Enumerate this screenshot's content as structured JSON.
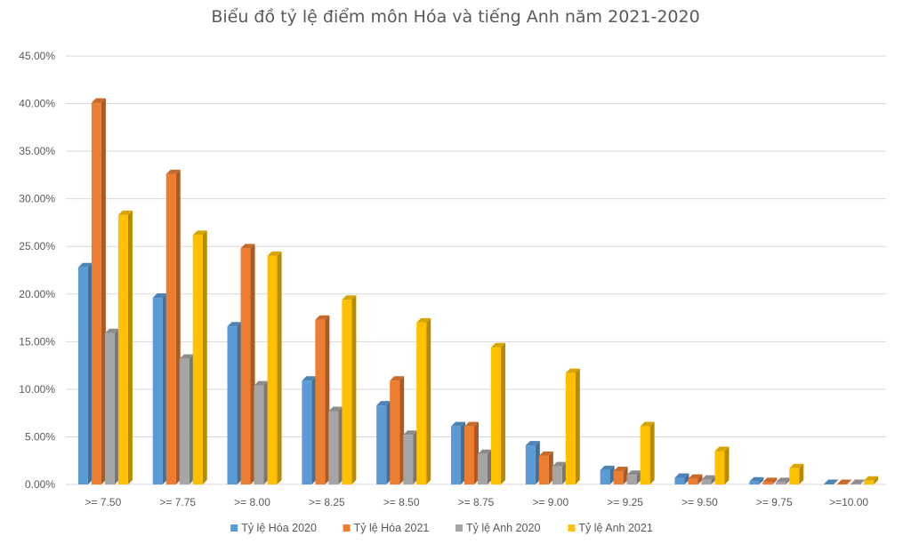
{
  "chart_data": {
    "type": "bar",
    "title": "Biểu đồ tỷ lệ điểm môn Hóa và tiếng Anh năm 2021-2020",
    "xlabel": "",
    "ylabel": "",
    "categories": [
      ">= 7.50",
      ">= 7.75",
      ">= 8.00",
      ">= 8.25",
      ">= 8.50",
      ">= 8.75",
      ">= 9.00",
      ">= 9.25",
      ">= 9.50",
      ">= 9.75",
      ">=10.00"
    ],
    "ylim": [
      0,
      45
    ],
    "yticks": [
      0,
      5,
      10,
      15,
      20,
      25,
      30,
      35,
      40,
      45
    ],
    "ytick_labels": [
      "0.00%",
      "5.00%",
      "10.00%",
      "15.00%",
      "20.00%",
      "25.00%",
      "30.00%",
      "35.00%",
      "40.00%",
      "45.00%"
    ],
    "grid": true,
    "legend_position": "bottom",
    "series": [
      {
        "name": "Tỷ lệ Hóa 2020",
        "color": "#5B9BD5",
        "values": [
          22.8,
          19.6,
          16.6,
          10.9,
          8.3,
          6.1,
          4.1,
          1.5,
          0.7,
          0.3,
          0.05
        ]
      },
      {
        "name": "Tỷ lệ Hóa 2021",
        "color": "#ED7D31",
        "values": [
          40.1,
          32.6,
          24.8,
          17.3,
          10.9,
          6.1,
          3.0,
          1.4,
          0.6,
          0.25,
          0.05
        ]
      },
      {
        "name": "Tỷ lệ Anh 2020",
        "color": "#A5A5A5",
        "values": [
          15.9,
          13.2,
          10.4,
          7.7,
          5.2,
          3.2,
          1.9,
          1.0,
          0.5,
          0.25,
          0.05
        ]
      },
      {
        "name": "Tỷ lệ Anh 2021",
        "color": "#FFC000",
        "values": [
          28.3,
          26.2,
          24.0,
          19.4,
          17.0,
          14.4,
          11.7,
          6.1,
          3.5,
          1.7,
          0.4
        ]
      }
    ]
  }
}
